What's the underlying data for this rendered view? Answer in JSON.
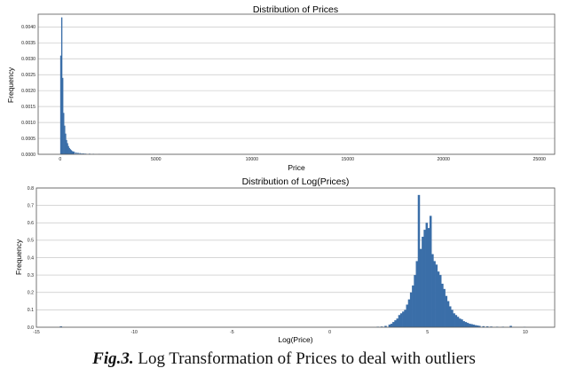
{
  "chart_data": [
    {
      "type": "bar",
      "title": "Distribution of Prices",
      "xlabel": "Price",
      "ylabel": "Frequency",
      "xlim": [
        -1150,
        25800
      ],
      "ylim": [
        0,
        0.0044
      ],
      "xticks": [
        0,
        5000,
        10000,
        15000,
        20000,
        25000
      ],
      "xtick_labels": [
        "0",
        "5000",
        "10000",
        "15000",
        "20000",
        "25000"
      ],
      "yticks": [
        0,
        0.0005,
        0.001,
        0.0015,
        0.002,
        0.0025,
        0.003,
        0.0035,
        0.004
      ],
      "ytick_labels": [
        "0.0000",
        "0.0005",
        "0.0010",
        "0.0015",
        "0.0020",
        "0.0025",
        "0.0030",
        "0.0035",
        "0.0040"
      ],
      "grid": true,
      "bin_width": 50,
      "x": [
        0,
        50,
        100,
        150,
        200,
        250,
        300,
        350,
        400,
        450,
        500,
        550,
        600,
        650,
        700,
        800,
        900,
        1000,
        1100,
        1200,
        1300,
        1500,
        1700,
        2000
      ],
      "values": [
        0.0031,
        0.0043,
        0.0024,
        0.0013,
        0.0009,
        0.00065,
        0.00045,
        0.00035,
        0.00026,
        0.0002,
        0.00016,
        0.00013,
        0.0001,
        9e-05,
        8e-05,
        6e-05,
        5e-05,
        4e-05,
        3e-05,
        3e-05,
        2e-05,
        2e-05,
        1.5e-05,
        1e-05
      ]
    },
    {
      "type": "bar",
      "title": "Distribution of Log(Prices)",
      "xlabel": "Log(Price)",
      "ylabel": "Frequency",
      "xlim": [
        -15,
        11.5
      ],
      "ylim": [
        0,
        0.8
      ],
      "xticks": [
        -15,
        -10,
        -5,
        0,
        5,
        10
      ],
      "xtick_labels": [
        "-15",
        "-10",
        "-5",
        "0",
        "5",
        "10"
      ],
      "yticks": [
        0,
        0.1,
        0.2,
        0.3,
        0.4,
        0.5,
        0.6,
        0.7,
        0.8
      ],
      "ytick_labels": [
        "0.0",
        "0.1",
        "0.2",
        "0.3",
        "0.4",
        "0.5",
        "0.6",
        "0.7",
        "0.8"
      ],
      "grid": true,
      "bin_width": 0.1,
      "x": [
        -13.8,
        2.4,
        2.6,
        2.8,
        3.0,
        3.1,
        3.2,
        3.3,
        3.4,
        3.5,
        3.6,
        3.7,
        3.8,
        3.9,
        4.0,
        4.1,
        4.2,
        4.3,
        4.4,
        4.5,
        4.6,
        4.7,
        4.8,
        4.9,
        5.0,
        5.1,
        5.2,
        5.3,
        5.4,
        5.5,
        5.6,
        5.7,
        5.8,
        5.9,
        6.0,
        6.1,
        6.2,
        6.3,
        6.4,
        6.5,
        6.6,
        6.7,
        6.8,
        6.9,
        7.0,
        7.1,
        7.2,
        7.3,
        7.4,
        7.5,
        7.6,
        7.8,
        8.0,
        8.2,
        8.5,
        8.8,
        9.2,
        9.9
      ],
      "values": [
        0.005,
        0.003,
        0.004,
        0.008,
        0.015,
        0.02,
        0.03,
        0.04,
        0.05,
        0.07,
        0.08,
        0.09,
        0.1,
        0.13,
        0.16,
        0.2,
        0.24,
        0.3,
        0.38,
        0.76,
        0.45,
        0.52,
        0.56,
        0.6,
        0.57,
        0.64,
        0.42,
        0.38,
        0.36,
        0.32,
        0.3,
        0.25,
        0.22,
        0.18,
        0.15,
        0.12,
        0.1,
        0.08,
        0.07,
        0.06,
        0.05,
        0.045,
        0.035,
        0.03,
        0.025,
        0.02,
        0.018,
        0.015,
        0.012,
        0.01,
        0.008,
        0.006,
        0.005,
        0.004,
        0.003,
        0.003,
        0.008,
        0.002
      ]
    }
  ],
  "caption": {
    "figure_label": "Fig.3.",
    "text": " Log Transformation of Prices to deal with outliers"
  },
  "colors": {
    "bar": "#3a6ea8",
    "grid": "#c8c8c8",
    "axis": "#555555"
  }
}
